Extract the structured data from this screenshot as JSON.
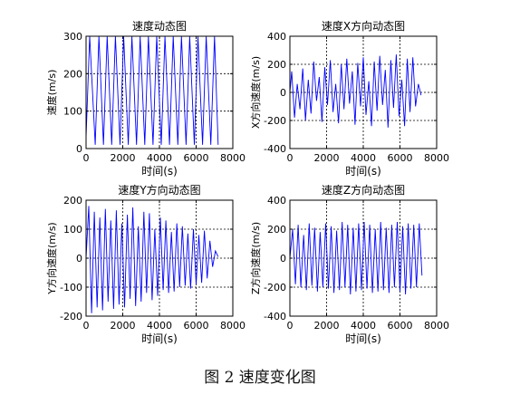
{
  "figure": {
    "caption": "图 2  速度变化图"
  },
  "chart_data": [
    {
      "type": "line",
      "title": "速度动态图",
      "xlabel": "时间(s)",
      "ylabel": "速度(m/s)",
      "xlim": [
        0,
        8000
      ],
      "ylim": [
        0,
        300
      ],
      "xticks": [
        0,
        2000,
        4000,
        6000,
        8000
      ],
      "yticks": [
        0,
        100,
        200,
        300
      ],
      "grid": true,
      "color": "#0000ff",
      "series": [
        {
          "x": [
            0,
            200,
            500,
            700,
            950,
            1150,
            1400,
            1600,
            1850,
            2050,
            2300,
            2500,
            2750,
            2950,
            3200,
            3400,
            3650,
            3850,
            4100,
            4300,
            4550,
            4750,
            5000,
            5200,
            5450,
            5650,
            5900,
            6100,
            6350,
            6550,
            6800,
            7000,
            7200
          ],
          "y": [
            30,
            300,
            10,
            300,
            10,
            300,
            10,
            300,
            10,
            300,
            10,
            300,
            10,
            300,
            10,
            300,
            10,
            300,
            10,
            300,
            10,
            300,
            10,
            300,
            10,
            300,
            10,
            300,
            10,
            300,
            10,
            300,
            10
          ]
        }
      ]
    },
    {
      "type": "line",
      "title": "速度X方向动态图",
      "xlabel": "时间(s)",
      "ylabel": "X方向速度(m/s)",
      "xlim": [
        0,
        8000
      ],
      "ylim": [
        -400,
        400
      ],
      "xticks": [
        0,
        2000,
        4000,
        6000,
        8000
      ],
      "yticks": [
        -400,
        -200,
        0,
        200,
        400
      ],
      "grid": true,
      "color": "#0000ff",
      "series": [
        {
          "x": [
            0,
            100,
            250,
            400,
            550,
            700,
            850,
            1000,
            1150,
            1300,
            1450,
            1600,
            1750,
            1900,
            2050,
            2200,
            2350,
            2500,
            2650,
            2800,
            2950,
            3100,
            3250,
            3400,
            3550,
            3700,
            3850,
            4000,
            4150,
            4300,
            4450,
            4600,
            4750,
            4900,
            5050,
            5200,
            5350,
            5500,
            5650,
            5800,
            5950,
            6100,
            6250,
            6400,
            6550,
            6700,
            6850,
            7000,
            7150
          ],
          "y": [
            0,
            150,
            -180,
            60,
            -120,
            170,
            -200,
            90,
            -150,
            220,
            -60,
            110,
            -210,
            180,
            -90,
            230,
            -140,
            60,
            -220,
            200,
            -120,
            240,
            -80,
            150,
            -230,
            210,
            -100,
            250,
            -160,
            80,
            -240,
            220,
            -130,
            260,
            -90,
            160,
            -250,
            230,
            -110,
            270,
            -170,
            90,
            -240,
            240,
            -140,
            250,
            -100,
            60,
            -20
          ]
        }
      ]
    },
    {
      "type": "line",
      "title": "速度Y方向动态图",
      "xlabel": "时间(s)",
      "ylabel": "Y方向速度(m/s)",
      "xlim": [
        0,
        8000
      ],
      "ylim": [
        -200,
        200
      ],
      "xticks": [
        0,
        2000,
        4000,
        6000,
        8000
      ],
      "yticks": [
        -200,
        -100,
        0,
        100,
        200
      ],
      "grid": true,
      "color": "#0000ff",
      "series": [
        {
          "x": [
            0,
            150,
            300,
            450,
            600,
            750,
            900,
            1050,
            1200,
            1350,
            1500,
            1650,
            1800,
            1950,
            2100,
            2250,
            2400,
            2550,
            2700,
            2850,
            3000,
            3150,
            3300,
            3450,
            3600,
            3750,
            3900,
            4050,
            4200,
            4350,
            4500,
            4650,
            4800,
            4950,
            5100,
            5250,
            5400,
            5550,
            5700,
            5850,
            6000,
            6150,
            6300,
            6450,
            6600,
            6750,
            6900,
            7050,
            7200
          ],
          "y": [
            0,
            180,
            -190,
            160,
            -170,
            140,
            -180,
            170,
            -150,
            130,
            -175,
            165,
            -160,
            120,
            -170,
            150,
            -140,
            175,
            -165,
            110,
            -150,
            160,
            -120,
            155,
            -145,
            100,
            -130,
            140,
            -110,
            130,
            -120,
            90,
            -115,
            120,
            -100,
            110,
            -95,
            85,
            -105,
            100,
            -90,
            80,
            -85,
            95,
            -70,
            60,
            -30,
            25,
            5
          ]
        }
      ]
    },
    {
      "type": "line",
      "title": "速度Z方向动态图",
      "xlabel": "时间(s)",
      "ylabel": "Z方向速度(m/s)",
      "xlim": [
        0,
        8000
      ],
      "ylim": [
        -400,
        400
      ],
      "xticks": [
        0,
        2000,
        4000,
        6000,
        8000
      ],
      "yticks": [
        -400,
        -200,
        0,
        200,
        400
      ],
      "grid": true,
      "color": "#0000ff",
      "series": [
        {
          "x": [
            0,
            150,
            300,
            450,
            600,
            750,
            900,
            1050,
            1200,
            1350,
            1500,
            1650,
            1800,
            1950,
            2100,
            2250,
            2400,
            2550,
            2700,
            2850,
            3000,
            3150,
            3300,
            3450,
            3600,
            3750,
            3900,
            4050,
            4200,
            4350,
            4500,
            4650,
            4800,
            4950,
            5100,
            5250,
            5400,
            5550,
            5700,
            5850,
            6000,
            6150,
            6300,
            6450,
            6600,
            6750,
            6900,
            7050,
            7200
          ],
          "y": [
            0,
            200,
            -180,
            230,
            -200,
            160,
            -220,
            240,
            -190,
            210,
            -230,
            180,
            -200,
            240,
            -210,
            220,
            -240,
            190,
            -220,
            250,
            -200,
            230,
            -250,
            210,
            -230,
            240,
            -220,
            250,
            -210,
            230,
            -240,
            200,
            -230,
            250,
            -220,
            210,
            -240,
            230,
            -200,
            250,
            -230,
            220,
            -250,
            240,
            -210,
            230,
            -200,
            240,
            -120
          ]
        }
      ]
    }
  ]
}
